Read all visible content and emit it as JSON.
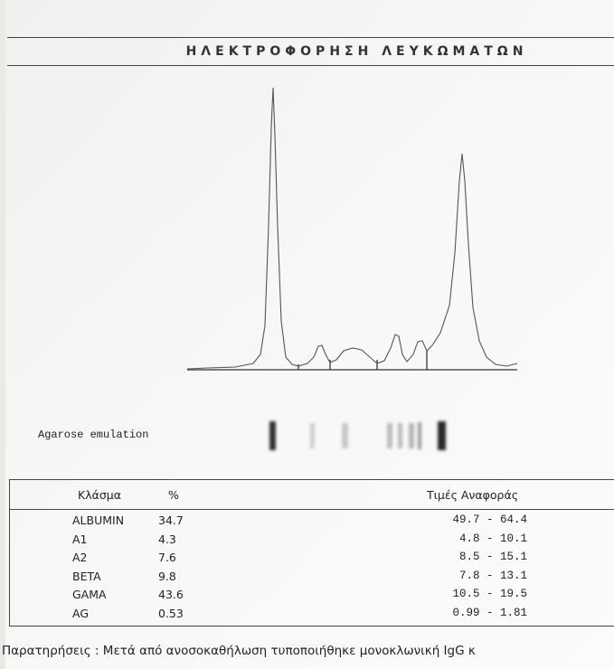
{
  "header": {
    "title": "ΗΛΕΚΤΡΟΦΟΡΗΣΗ ΛΕΥΚΩΜΑΤΩΝ"
  },
  "gel_label": "Agarose emulation",
  "table": {
    "columns": [
      "Κλάσμα",
      "%",
      "Τιμές Αναφοράς"
    ],
    "rows": [
      [
        "ALBUMIN",
        "34.7",
        "49.7 - 64.4"
      ],
      [
        "A1",
        "4.3",
        "4.8 - 10.1"
      ],
      [
        "A2",
        "7.6",
        "8.5 - 15.1"
      ],
      [
        "BETA",
        "9.8",
        "7.8 - 13.1"
      ],
      [
        "GAMA",
        "43.6",
        "10.5 - 19.5"
      ],
      [
        "AG",
        "0.53",
        "0.99 - 1.81"
      ]
    ]
  },
  "remarks": "Παρατηρήσεις : Μετά από ανοσοκαθήλωση τυποποιήθηκε μονοκλωνική IgG κ"
}
